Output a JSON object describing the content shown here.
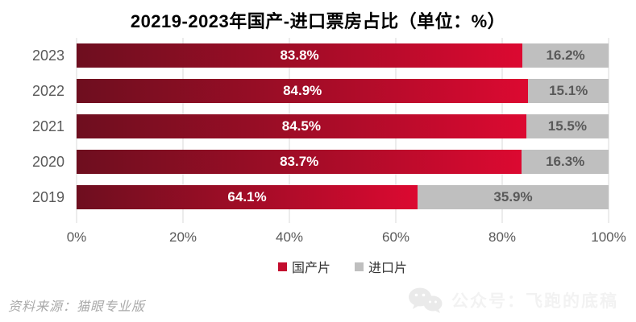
{
  "title": "20219-2023年国产-进口票房占比（单位：%）",
  "chart_data": {
    "type": "bar",
    "orientation": "horizontal",
    "stacked": true,
    "title": "20219-2023年国产-进口票房占比（单位：%）",
    "categories": [
      "2023",
      "2022",
      "2021",
      "2020",
      "2019"
    ],
    "series": [
      {
        "name": "国产片",
        "color_start": "#6E0E1F",
        "color_end": "#DC0931",
        "values": [
          83.8,
          84.9,
          84.5,
          83.7,
          64.1
        ],
        "labels": [
          "83.8%",
          "84.9%",
          "84.5%",
          "83.7%",
          "64.1%"
        ]
      },
      {
        "name": "进口片",
        "color": "#BFBFBF",
        "values": [
          16.2,
          15.1,
          15.5,
          16.3,
          35.9
        ],
        "labels": [
          "16.2%",
          "15.1%",
          "15.5%",
          "16.3%",
          "35.9%"
        ]
      }
    ],
    "xlim": [
      0,
      100
    ],
    "x_ticks": [
      {
        "pos": 0,
        "label": "0%"
      },
      {
        "pos": 20,
        "label": "20%"
      },
      {
        "pos": 40,
        "label": "40%"
      },
      {
        "pos": 60,
        "label": "60%"
      },
      {
        "pos": 80,
        "label": "80%"
      },
      {
        "pos": 100,
        "label": "100%"
      }
    ],
    "grid": "vertical",
    "legend_position": "bottom"
  },
  "legend": {
    "items": [
      {
        "label": "国产片",
        "color": "#C30D2E"
      },
      {
        "label": "进口片",
        "color": "#BFBFBF"
      }
    ]
  },
  "footer": {
    "source": "资料来源：猫眼专业版",
    "watermark_text": "公众号：飞跑的底稿",
    "watermark_icon": "wechat-icon"
  },
  "colors": {
    "bar_red_dark": "#6E0E1F",
    "bar_red_bright": "#DC0931",
    "bar_gray": "#BFBFBF",
    "axis_text": "#595959",
    "gridline": "#D9D9D9",
    "title_text": "#000000"
  }
}
